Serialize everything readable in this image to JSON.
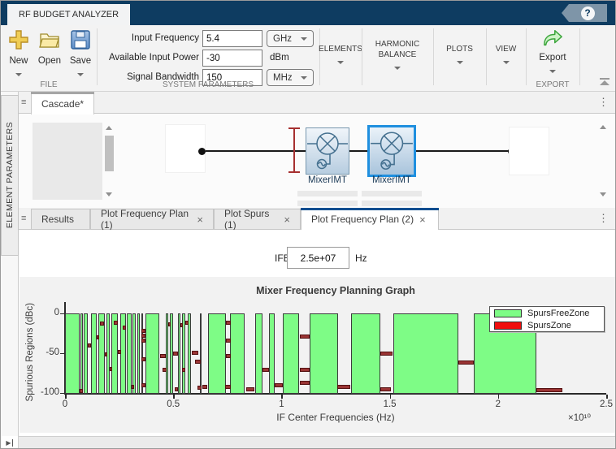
{
  "titlebar": {
    "app_tab": "RF BUDGET ANALYZER"
  },
  "icons": {
    "help": "?",
    "menu": "≡",
    "kebab": "⋮",
    "close": "×",
    "expand_panel": "▶"
  },
  "ribbon": {
    "file_section_label": "FILE",
    "new_label": "New",
    "open_label": "Open",
    "save_label": "Save",
    "system_section_label": "SYSTEM PARAMETERS",
    "input_frequency_label": "Input Frequency",
    "input_frequency_value": "5.4",
    "input_frequency_unit": "GHz",
    "available_input_power_label": "Available Input Power",
    "available_input_power_value": "-30",
    "available_input_power_unit": "dBm",
    "signal_bandwidth_label": "Signal Bandwidth",
    "signal_bandwidth_value": "150",
    "signal_bandwidth_unit": "MHz",
    "elements_label": "ELEMENTS",
    "harmonic_balance_label": "HARMONIC BALANCE",
    "plots_label": "PLOTS",
    "view_label": "VIEW",
    "export_label": "Export",
    "export_section_label": "EXPORT"
  },
  "left_panel_tab": "ELEMENT PARAMETERS",
  "canvas": {
    "tab_label": "Cascade*",
    "mixer1_label": "MixerIMT",
    "mixer2_label": "MixerIMT"
  },
  "plot_tabs": {
    "results": "Results",
    "freq_plan_1": "Plot Frequency Plan (1)",
    "spurs_1": "Plot Spurs (1)",
    "freq_plan_2": "Plot Frequency Plan (2)"
  },
  "figure_panel": {
    "ifbw_label": "IFBW",
    "ifbw_value": "2.5e+07",
    "ifbw_unit": "Hz"
  },
  "chart_data": {
    "type": "bar",
    "title": "Mixer Frequency Planning Graph",
    "xlabel": "IF Center Frequencies (Hz)",
    "ylabel": "Spurious Regions (dBc)",
    "x_scale_label": "×10¹⁰",
    "x_unit_scale": 10000000000.0,
    "xlim": [
      0,
      2.5
    ],
    "ylim": [
      -100,
      0
    ],
    "x_ticks": [
      "0",
      "0.5",
      "1",
      "1.5",
      "2",
      "2.5"
    ],
    "y_ticks": [
      "0",
      "-50",
      "-100"
    ],
    "grid": false,
    "legend_position": "top-right",
    "legend": [
      {
        "label": "SpursFreeZone",
        "color": "#7efc86"
      },
      {
        "label": "SpursZone",
        "color": "#f10e0e"
      }
    ],
    "colors": {
      "zone_fill": "#7efc86",
      "zone_border": "#3c3c3c",
      "spur_fill": "#9a3434",
      "spur_border": "#541111"
    },
    "spurs_free_zones_x1e10": [
      [
        0.0,
        0.068
      ],
      [
        0.072,
        0.082
      ],
      [
        0.086,
        0.105
      ],
      [
        0.12,
        0.147
      ],
      [
        0.154,
        0.184
      ],
      [
        0.19,
        0.207
      ],
      [
        0.214,
        0.245
      ],
      [
        0.255,
        0.28
      ],
      [
        0.285,
        0.308
      ],
      [
        0.312,
        0.327
      ],
      [
        0.334,
        0.347
      ],
      [
        0.351,
        0.362
      ],
      [
        0.372,
        0.436
      ],
      [
        0.466,
        0.477
      ],
      [
        0.485,
        0.5
      ],
      [
        0.523,
        0.534
      ],
      [
        0.541,
        0.556
      ],
      [
        0.568,
        0.583
      ],
      [
        0.624,
        0.632
      ],
      [
        0.662,
        0.744
      ],
      [
        0.763,
        0.831
      ],
      [
        0.88,
        0.914
      ],
      [
        0.944,
        0.97
      ],
      [
        1.007,
        1.083
      ],
      [
        1.131,
        1.26
      ],
      [
        1.32,
        1.455
      ],
      [
        1.515,
        1.816
      ],
      [
        1.89,
        2.177
      ]
    ],
    "spur_markers_x1e10": [
      {
        "x": 0.068,
        "w": 0.016,
        "dbc": -97
      },
      {
        "x": 0.105,
        "w": 0.014,
        "dbc": -40
      },
      {
        "x": 0.147,
        "w": 0.012,
        "dbc": -30
      },
      {
        "x": 0.163,
        "w": 0.018,
        "dbc": -13
      },
      {
        "x": 0.184,
        "w": 0.012,
        "dbc": -52
      },
      {
        "x": 0.207,
        "w": 0.012,
        "dbc": -70
      },
      {
        "x": 0.226,
        "w": 0.018,
        "dbc": -12
      },
      {
        "x": 0.245,
        "w": 0.014,
        "dbc": -48
      },
      {
        "x": 0.266,
        "w": 0.016,
        "dbc": -18
      },
      {
        "x": 0.308,
        "w": 0.01,
        "dbc": -92
      },
      {
        "x": 0.353,
        "w": 0.018,
        "dbc": -22
      },
      {
        "x": 0.353,
        "w": 0.018,
        "dbc": -28
      },
      {
        "x": 0.353,
        "w": 0.018,
        "dbc": -34
      },
      {
        "x": 0.353,
        "w": 0.018,
        "dbc": -58
      },
      {
        "x": 0.353,
        "w": 0.018,
        "dbc": -90
      },
      {
        "x": 0.438,
        "w": 0.026,
        "dbc": -54
      },
      {
        "x": 0.45,
        "w": 0.018,
        "dbc": -71
      },
      {
        "x": 0.477,
        "w": 0.012,
        "dbc": -14
      },
      {
        "x": 0.5,
        "w": 0.02,
        "dbc": -50
      },
      {
        "x": 0.505,
        "w": 0.016,
        "dbc": -95
      },
      {
        "x": 0.534,
        "w": 0.012,
        "dbc": -15
      },
      {
        "x": 0.54,
        "w": 0.015,
        "dbc": -71
      },
      {
        "x": 0.556,
        "w": 0.014,
        "dbc": -12
      },
      {
        "x": 0.586,
        "w": 0.03,
        "dbc": -49
      },
      {
        "x": 0.6,
        "w": 0.026,
        "dbc": -61
      },
      {
        "x": 0.612,
        "w": 0.02,
        "dbc": -93
      },
      {
        "x": 0.636,
        "w": 0.022,
        "dbc": -92
      },
      {
        "x": 0.744,
        "w": 0.02,
        "dbc": -12
      },
      {
        "x": 0.744,
        "w": 0.02,
        "dbc": -34
      },
      {
        "x": 0.744,
        "w": 0.02,
        "dbc": -54
      },
      {
        "x": 0.738,
        "w": 0.028,
        "dbc": -92
      },
      {
        "x": 0.836,
        "w": 0.04,
        "dbc": -95
      },
      {
        "x": 0.914,
        "w": 0.03,
        "dbc": -71
      },
      {
        "x": 0.97,
        "w": 0.037,
        "dbc": -90
      },
      {
        "x": 1.085,
        "w": 0.044,
        "dbc": -29
      },
      {
        "x": 1.085,
        "w": 0.044,
        "dbc": -71
      },
      {
        "x": 1.085,
        "w": 0.044,
        "dbc": -87
      },
      {
        "x": 1.258,
        "w": 0.06,
        "dbc": -92
      },
      {
        "x": 1.455,
        "w": 0.058,
        "dbc": -51
      },
      {
        "x": 1.457,
        "w": 0.05,
        "dbc": -95
      },
      {
        "x": 1.816,
        "w": 0.072,
        "dbc": -62
      },
      {
        "x": 2.177,
        "w": 0.12,
        "dbc": -96
      }
    ]
  }
}
